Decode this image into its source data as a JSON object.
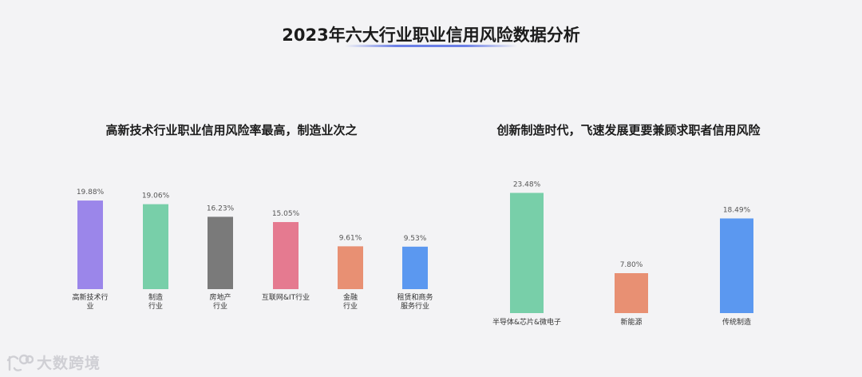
{
  "page": {
    "title": "2023年六大行业职业信用风险数据分析",
    "watermark": "大数跨境"
  },
  "colors": {
    "purple": "#9b86ea",
    "green": "#78cfa9",
    "gray": "#7a7a7a",
    "pink": "#e57a90",
    "orange": "#e89073",
    "blue": "#5b98f0",
    "title_underline": "#6b7fe6"
  },
  "chart_data": [
    {
      "type": "bar",
      "title": "高新技术行业职业信用风险率最高，制造业次之",
      "categories": [
        [
          "高新技术行",
          "业"
        ],
        [
          "制造",
          "行业"
        ],
        [
          "房地产",
          "行业"
        ],
        [
          "互联网&IT行业"
        ],
        [
          "金融",
          "行业"
        ],
        [
          "租赁和商务",
          "服务行业"
        ]
      ],
      "values": [
        19.88,
        19.06,
        16.23,
        15.05,
        9.61,
        9.53
      ],
      "value_labels": [
        "19.88%",
        "19.06%",
        "16.23%",
        "15.05%",
        "9.61%",
        "9.53%"
      ],
      "bar_colors": [
        "#9b86ea",
        "#78cfa9",
        "#7a7a7a",
        "#e57a90",
        "#e89073",
        "#5b98f0"
      ],
      "ylim": [
        0,
        25
      ],
      "grid": false,
      "legend": "none"
    },
    {
      "type": "bar",
      "title": "创新制造时代，飞速发展更要兼顾求职者信用风险",
      "categories": [
        [
          "半导体&芯片&微电子"
        ],
        [
          "新能源"
        ],
        [
          "传统制造"
        ]
      ],
      "values": [
        23.48,
        7.8,
        18.49
      ],
      "value_labels": [
        "23.48%",
        "7.80%",
        "18.49%"
      ],
      "bar_colors": [
        "#78cfa9",
        "#e89073",
        "#5b98f0"
      ],
      "ylim": [
        0,
        25
      ],
      "grid": false,
      "legend": "none"
    }
  ]
}
